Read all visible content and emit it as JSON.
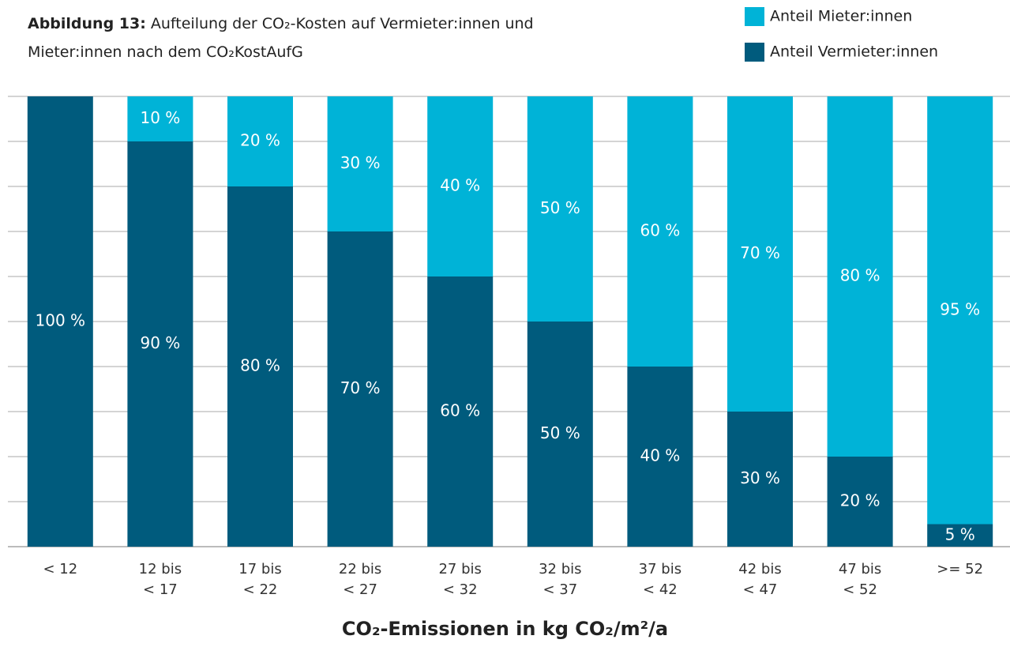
{
  "chart_data": {
    "type": "stacked_bar",
    "title_label": "Abbildung 13:",
    "title": "Aufteilung der CO₂-Kosten auf Vermieter:innen und Mieter:innen nach dem CO₂KostAufG",
    "x_label": "CO₂-Emissionen in kg CO₂/m²/a",
    "categories": [
      "< 12",
      "12 bis\n< 17",
      "17 bis\n< 22",
      "22 bis\n< 27",
      "27 bis\n< 32",
      "32 bis\n< 37",
      "37 bis\n< 42",
      "42 bis\n< 47",
      "47 bis\n< 52",
      ">= 52"
    ],
    "series": [
      {
        "name": "Anteil Vermieter:innen",
        "color": "#005b7d",
        "values": [
          100,
          90,
          80,
          70,
          60,
          50,
          40,
          30,
          20,
          5
        ],
        "value_labels": [
          "100 %",
          "90 %",
          "80 %",
          "70 %",
          "60 %",
          "50 %",
          "40 %",
          "30 %",
          "20 %",
          "5 %"
        ]
      },
      {
        "name": "Anteil Mieter:innen",
        "color": "#00b3d7",
        "values": [
          0,
          10,
          20,
          30,
          40,
          50,
          60,
          70,
          80,
          95
        ],
        "value_labels": [
          null,
          "10 %",
          "20 %",
          "30 %",
          "40 %",
          "50 %",
          "60 %",
          "70 %",
          "80 %",
          "95 %"
        ]
      }
    ],
    "ylim": [
      0,
      100
    ],
    "yticks": [
      0,
      10,
      20,
      30,
      40,
      50,
      60,
      70,
      80,
      90,
      100
    ],
    "grid": true,
    "legend": "top-right"
  }
}
